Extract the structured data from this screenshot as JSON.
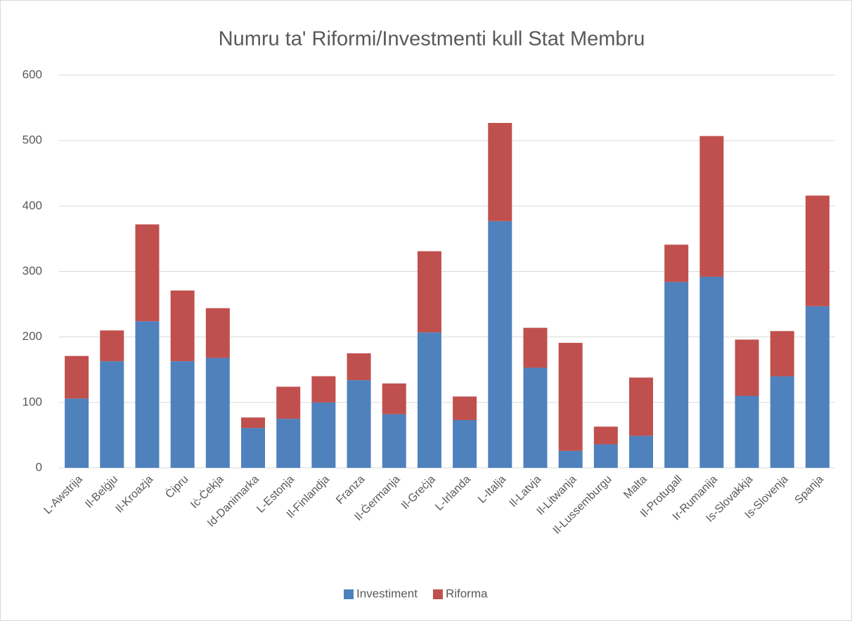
{
  "chart_data": {
    "type": "stacked_bar",
    "title": "Numru ta' Riformi/Investmenti kull Stat Membru",
    "categories": [
      "L-Awstrija",
      "Il-Belġju",
      "Il-Kroazja",
      "Ċipru",
      "Iċ-Ċekja",
      "Id-Danimarka",
      "L-Estonja",
      "Il-Finlandja",
      "Franza",
      "Il-Ġermanja",
      "Il-Greċja",
      "L-Irlanda",
      "L-Italja",
      "Il-Latvja",
      "Il-Litwanja",
      "Il-Lussemburgu",
      "Malta",
      "Il-Protugall",
      "Ir-Rumanija",
      "Is-Slovakkja",
      "Is-Slovenja",
      "Spanja"
    ],
    "series": [
      {
        "name": "Investiment",
        "color": "#4f81bd",
        "values": [
          106,
          163,
          224,
          163,
          168,
          61,
          75,
          100,
          134,
          82,
          207,
          73,
          377,
          153,
          26,
          36,
          49,
          284,
          292,
          110,
          140,
          247
        ]
      },
      {
        "name": "Riforma",
        "color": "#c0504d",
        "values": [
          65,
          47,
          148,
          108,
          76,
          16,
          49,
          40,
          41,
          47,
          124,
          36,
          150,
          61,
          165,
          27,
          89,
          57,
          215,
          86,
          69,
          169
        ]
      }
    ],
    "ylim": [
      0,
      600
    ],
    "yticks": [
      0,
      100,
      200,
      300,
      400,
      500,
      600
    ],
    "grid": true,
    "legend": "bottom"
  }
}
